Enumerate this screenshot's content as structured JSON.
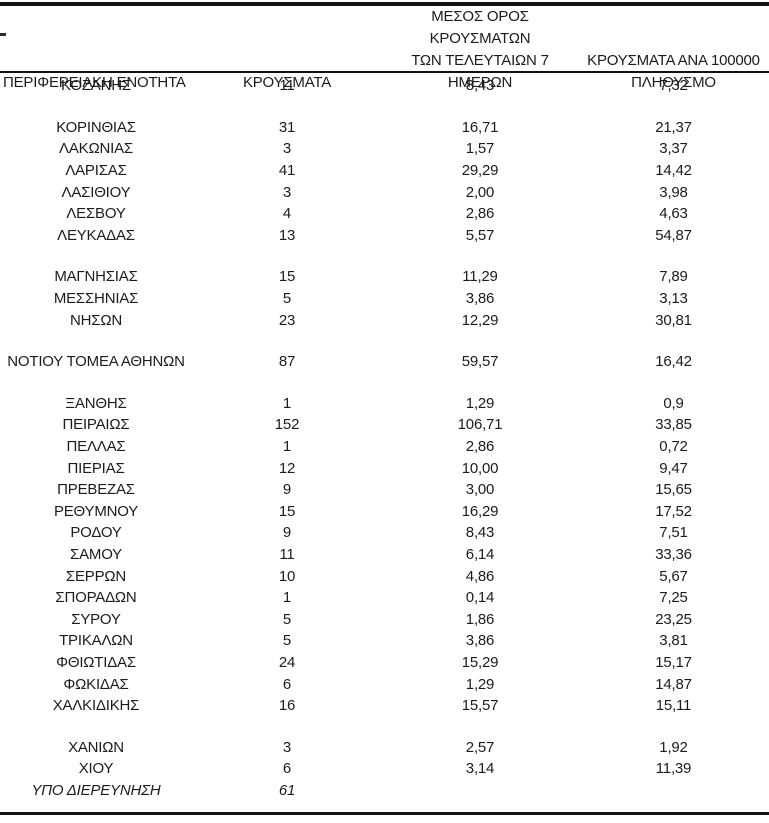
{
  "table": {
    "header": {
      "col1": "ΠΕΡΙΦΕΡΕΙΑΚΗ ΕΝΟΤΗΤΑ",
      "col2": "ΚΡΟΥΣΜΑΤΑ",
      "col3_lines": [
        "ΜΕΣΟΣ ΟΡΟΣ ΚΡΟΥΣΜΑΤΩΝ",
        "ΤΩΝ ΤΕΛΕΥΤΑΙΩΝ 7",
        "ΗΜΕΡΩΝ"
      ],
      "col4_lines": [
        "ΚΡΟΥΣΜΑΤΑ ΑΝΑ 100000",
        "ΠΛΗΘΥΣΜΟ"
      ]
    },
    "sections": [
      {
        "rows": [
          {
            "name": "ΚΟΖΑΝΗΣ",
            "cases": "11",
            "avg7": "8,43",
            "per100k": "7,32"
          }
        ]
      },
      {
        "rows": [
          {
            "name": "ΚΟΡΙΝΘΙΑΣ",
            "cases": "31",
            "avg7": "16,71",
            "per100k": "21,37"
          },
          {
            "name": "ΛΑΚΩΝΙΑΣ",
            "cases": "3",
            "avg7": "1,57",
            "per100k": "3,37"
          },
          {
            "name": "ΛΑΡΙΣΑΣ",
            "cases": "41",
            "avg7": "29,29",
            "per100k": "14,42"
          },
          {
            "name": "ΛΑΣΙΘΙΟΥ",
            "cases": "3",
            "avg7": "2,00",
            "per100k": "3,98"
          },
          {
            "name": "ΛΕΣΒΟΥ",
            "cases": "4",
            "avg7": "2,86",
            "per100k": "4,63"
          },
          {
            "name": "ΛΕΥΚΑΔΑΣ",
            "cases": "13",
            "avg7": "5,57",
            "per100k": "54,87"
          }
        ]
      },
      {
        "rows": [
          {
            "name": "ΜΑΓΝΗΣΙΑΣ",
            "cases": "15",
            "avg7": "11,29",
            "per100k": "7,89"
          },
          {
            "name": "ΜΕΣΣΗΝΙΑΣ",
            "cases": "5",
            "avg7": "3,86",
            "per100k": "3,13"
          },
          {
            "name": "ΝΗΣΩΝ",
            "cases": "23",
            "avg7": "12,29",
            "per100k": "30,81"
          }
        ]
      },
      {
        "rows": [
          {
            "name": "ΝΟΤΙΟΥ ΤΟΜΕΑ ΑΘΗΝΩΝ",
            "cases": "87",
            "avg7": "59,57",
            "per100k": "16,42"
          }
        ]
      },
      {
        "rows": [
          {
            "name": "ΞΑΝΘΗΣ",
            "cases": "1",
            "avg7": "1,29",
            "per100k": "0,9"
          },
          {
            "name": "ΠΕΙΡΑΙΩΣ",
            "cases": "152",
            "avg7": "106,71",
            "per100k": "33,85"
          },
          {
            "name": "ΠΕΛΛΑΣ",
            "cases": "1",
            "avg7": "2,86",
            "per100k": "0,72"
          },
          {
            "name": "ΠΙΕΡΙΑΣ",
            "cases": "12",
            "avg7": "10,00",
            "per100k": "9,47"
          },
          {
            "name": "ΠΡΕΒΕΖΑΣ",
            "cases": "9",
            "avg7": "3,00",
            "per100k": "15,65"
          },
          {
            "name": "ΡΕΘΥΜΝΟΥ",
            "cases": "15",
            "avg7": "16,29",
            "per100k": "17,52"
          },
          {
            "name": "ΡΟΔΟΥ",
            "cases": "9",
            "avg7": "8,43",
            "per100k": "7,51"
          },
          {
            "name": "ΣΑΜΟΥ",
            "cases": "11",
            "avg7": "6,14",
            "per100k": "33,36"
          },
          {
            "name": "ΣΕΡΡΩΝ",
            "cases": "10",
            "avg7": "4,86",
            "per100k": "5,67"
          },
          {
            "name": "ΣΠΟΡΑΔΩΝ",
            "cases": "1",
            "avg7": "0,14",
            "per100k": "7,25"
          },
          {
            "name": "ΣΥΡΟΥ",
            "cases": "5",
            "avg7": "1,86",
            "per100k": "23,25"
          },
          {
            "name": "ΤΡΙΚΑΛΩΝ",
            "cases": "5",
            "avg7": "3,86",
            "per100k": "3,81"
          },
          {
            "name": "ΦΘΙΩΤΙΔΑΣ",
            "cases": "24",
            "avg7": "15,29",
            "per100k": "15,17"
          },
          {
            "name": "ΦΩΚΙΔΑΣ",
            "cases": "6",
            "avg7": "1,29",
            "per100k": "14,87"
          },
          {
            "name": "ΧΑΛΚΙΔΙΚΗΣ",
            "cases": "16",
            "avg7": "15,57",
            "per100k": "15,11"
          }
        ]
      },
      {
        "rows": [
          {
            "name": "ΧΑΝΙΩΝ",
            "cases": "3",
            "avg7": "2,57",
            "per100k": "1,92"
          },
          {
            "name": "ΧΙΟΥ",
            "cases": "6",
            "avg7": "3,14",
            "per100k": "11,39"
          },
          {
            "name": "ΥΠΟ ΔΙΕΡΕΥΝΗΣΗ",
            "cases": "61",
            "avg7": "",
            "per100k": "",
            "italic": true
          }
        ]
      }
    ]
  }
}
